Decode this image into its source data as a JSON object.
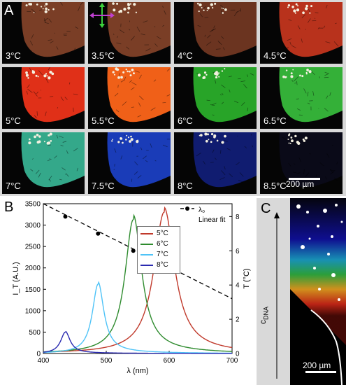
{
  "panel_a": {
    "letter": "A",
    "tiles": [
      {
        "label": "3°C",
        "color": "#7a3e26"
      },
      {
        "label": "3.5°C",
        "color": "#7a3e26"
      },
      {
        "label": "4°C",
        "color": "#6b3420"
      },
      {
        "label": "4.5°C",
        "color": "#b8321c"
      },
      {
        "label": "5°C",
        "color": "#e03018"
      },
      {
        "label": "5.5°C",
        "color": "#f06018"
      },
      {
        "label": "6°C",
        "color": "#28a428"
      },
      {
        "label": "6.5°C",
        "color": "#34b038"
      },
      {
        "label": "7°C",
        "color": "#34a88a"
      },
      {
        "label": "7.5°C",
        "color": "#1a3cb8"
      },
      {
        "label": "8°C",
        "color": "#101c70"
      },
      {
        "label": "8.5°C",
        "color": "#0a0a18"
      }
    ],
    "scale_bar": "200 µm"
  },
  "panel_b": {
    "letter": "B",
    "legend_lambda": "λ₀",
    "legend_fit": "Linear fit",
    "ylabel_left": "I_T (A.U.)",
    "ylabel_right": "T (°C)",
    "xlabel": "λ (nm)"
  },
  "panel_c": {
    "letter": "C",
    "axis_label": "c_DNA",
    "scale_bar": "200 µm"
  },
  "chart_data": {
    "type": "line",
    "xlabel": "λ (nm)",
    "ylabel": "I_T (A.U.)",
    "y2label": "T (°C)",
    "xlim": [
      400,
      700
    ],
    "ylim": [
      0,
      3500
    ],
    "y2lim": [
      0,
      8.75
    ],
    "xticks": [
      400,
      500,
      600,
      700
    ],
    "yticks": [
      0,
      500,
      1000,
      1500,
      2000,
      2500,
      3000,
      3500
    ],
    "y2ticks": [
      0,
      2,
      4,
      6,
      8
    ],
    "series": [
      {
        "name": "5°C",
        "color": "#c0392b",
        "peak_x": 592,
        "peak_y": 3300,
        "width": 20
      },
      {
        "name": "6°C",
        "color": "#2e8b2e",
        "peak_x": 543,
        "peak_y": 3130,
        "width": 16
      },
      {
        "name": "7°C",
        "color": "#4fc3f7",
        "peak_x": 487,
        "peak_y": 1620,
        "width": 11
      },
      {
        "name": "8°C",
        "color": "#2a2ab0",
        "peak_x": 435,
        "peak_y": 500,
        "width": 9
      }
    ],
    "lambda0_points": [
      {
        "x": 435,
        "y": 8
      },
      {
        "x": 487,
        "y": 7
      },
      {
        "x": 543,
        "y": 6
      },
      {
        "x": 592,
        "y": 5
      }
    ],
    "linear_fit": {
      "x": [
        400,
        700
      ],
      "y": [
        8.75,
        3.2
      ]
    },
    "legend": [
      "λ₀",
      "Linear fit",
      "5°C",
      "6°C",
      "7°C",
      "8°C"
    ]
  }
}
